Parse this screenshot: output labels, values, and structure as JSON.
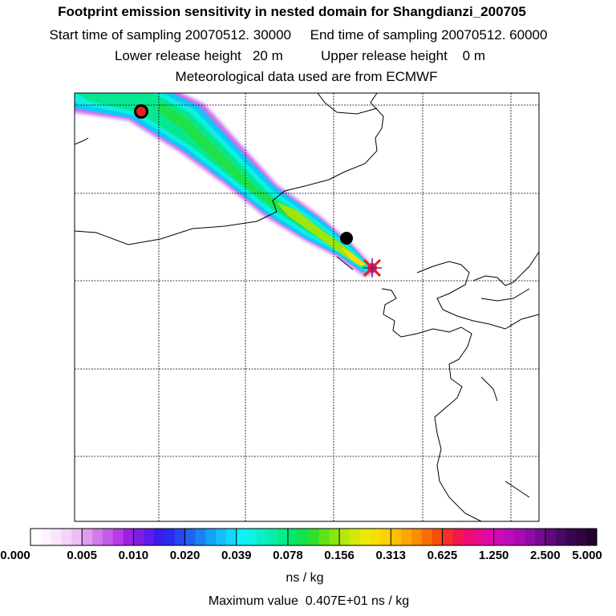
{
  "title": "Footprint emission sensitivity in nested domain for Shangdianzi_200705",
  "sampling": {
    "start_label": "Start time of sampling",
    "start_value": "20070512. 30000",
    "end_label": "End time of sampling",
    "end_value": "20070512. 60000",
    "line": "Start time of sampling 20070512. 30000     End time of sampling 20070512. 60000"
  },
  "release": {
    "line": "Lower release height   20 m          Upper release height    0 m"
  },
  "met_line": "Meteorological data used are from ECMWF",
  "colorbar": {
    "tick_labels": [
      "0.000",
      "0.005",
      "0.010",
      "0.020",
      "0.039",
      "0.078",
      "0.156",
      "0.313",
      "0.625",
      "1.250",
      "2.500",
      "5.000"
    ],
    "colors": [
      [
        "#ffffff",
        "#fdf2fd",
        "#fae4fb",
        "#f5d2f8",
        "#eebff4"
      ],
      [
        "#df9bee",
        "#d27bea",
        "#c45ce6",
        "#b43ee3",
        "#9f20e0"
      ],
      [
        "#7f1ee3",
        "#5f1ce8",
        "#3d1aee",
        "#2a2aef",
        "#2445f0"
      ],
      [
        "#1c64f3",
        "#1883f5",
        "#15a1f7",
        "#13bef9",
        "#10d8fb"
      ],
      [
        "#0ef0fa",
        "#0cf2e3",
        "#0af0c6",
        "#08eda8",
        "#06ea8a"
      ],
      [
        "#04e76a",
        "#12e34a",
        "#30e02c",
        "#5ee216",
        "#8ae50c"
      ],
      [
        "#b3e80a",
        "#d2ea08",
        "#eaea06",
        "#f4df05",
        "#fbd004"
      ],
      [
        "#fdbd04",
        "#fca703",
        "#fb8d03",
        "#fa6f03",
        "#f84e08"
      ],
      [
        "#f5302a",
        "#f2184f",
        "#ee0c73",
        "#e80a8f",
        "#de0aa6"
      ],
      [
        "#cf0ab4",
        "#bd0aba",
        "#a80ab8",
        "#8f0aa8",
        "#760a91"
      ],
      [
        "#5e0a7a",
        "#4a0863",
        "#3a064f",
        "#2e053e",
        "#22032e"
      ]
    ]
  },
  "units": "ns / kg",
  "max_value_line": "Maximum value  0.407E+01 ns / kg",
  "markers": {
    "receptor": "receptor-star",
    "black_dot": "trajectory-position-dot",
    "red_dot": "trajectory-start-dot"
  }
}
